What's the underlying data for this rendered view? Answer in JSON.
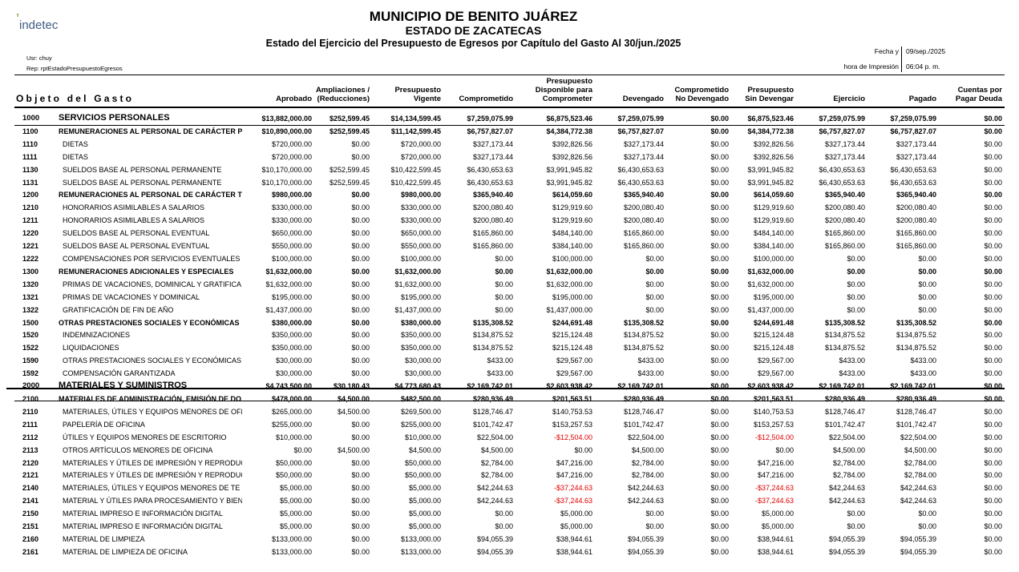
{
  "header": {
    "logo": "indetec",
    "title": "MUNICIPIO DE BENITO JUÁREZ",
    "subtitle": "ESTADO DE ZACATECAS",
    "report": "Estado del Ejercicio del Presupuesto de Egresos por Capítulo del Gasto Al 30/jun./2025",
    "user": "Usr: chuy",
    "rep": "Rep: rptEstadoPresupuestoEgresos",
    "date_label": "Fecha y",
    "date": "09/sep./2025",
    "time_label": "hora de Impresión",
    "time": "06:04 p. m."
  },
  "table": {
    "columns": [
      "Objeto del Gasto",
      "Aprobado",
      "Ampliaciones /\n(Reducciones)",
      "Presupuesto\nVigente",
      "Comprometido",
      "Presupuesto\nDisponible para\nComprometer",
      "Devengado",
      "Comprometido\nNo Devengado",
      "Presupuesto\nSin Devengar",
      "Ejercicio",
      "Pagado",
      "Cuentas por\nPagar Deuda"
    ],
    "rows": [
      [
        "1000",
        "SERVICIOS PERSONALES",
        "$13,882,000.00",
        "$252,599.45",
        "$14,134,599.45",
        "$7,259,075.99",
        "$6,875,523.46",
        "$7,259,075.99",
        "$0.00",
        "$6,875,523.46",
        "$7,259,075.99",
        "$7,259,075.99",
        "$0.00"
      ],
      [
        "1100",
        "REMUNERACIONES AL PERSONAL DE CARÁCTER PE",
        "$10,890,000.00",
        "$252,599.45",
        "$11,142,599.45",
        "$6,757,827.07",
        "$4,384,772.38",
        "$6,757,827.07",
        "$0.00",
        "$4,384,772.38",
        "$6,757,827.07",
        "$6,757,827.07",
        "$0.00"
      ],
      [
        "1110",
        "DIETAS",
        "$720,000.00",
        "$0.00",
        "$720,000.00",
        "$327,173.44",
        "$392,826.56",
        "$327,173.44",
        "$0.00",
        "$392,826.56",
        "$327,173.44",
        "$327,173.44",
        "$0.00"
      ],
      [
        "1111",
        "DIETAS",
        "$720,000.00",
        "$0.00",
        "$720,000.00",
        "$327,173.44",
        "$392,826.56",
        "$327,173.44",
        "$0.00",
        "$392,826.56",
        "$327,173.44",
        "$327,173.44",
        "$0.00"
      ],
      [
        "1130",
        "SUELDOS BASE AL PERSONAL PERMANENTE",
        "$10,170,000.00",
        "$252,599.45",
        "$10,422,599.45",
        "$6,430,653.63",
        "$3,991,945.82",
        "$6,430,653.63",
        "$0.00",
        "$3,991,945.82",
        "$6,430,653.63",
        "$6,430,653.63",
        "$0.00"
      ],
      [
        "1131",
        "SUELDOS BASE AL PERSONAL PERMANENTE",
        "$10,170,000.00",
        "$252,599.45",
        "$10,422,599.45",
        "$6,430,653.63",
        "$3,991,945.82",
        "$6,430,653.63",
        "$0.00",
        "$3,991,945.82",
        "$6,430,653.63",
        "$6,430,653.63",
        "$0.00"
      ],
      [
        "1200",
        "REMUNERACIONES AL PERSONAL DE CARÁCTER TI",
        "$980,000.00",
        "$0.00",
        "$980,000.00",
        "$365,940.40",
        "$614,059.60",
        "$365,940.40",
        "$0.00",
        "$614,059.60",
        "$365,940.40",
        "$365,940.40",
        "$0.00"
      ],
      [
        "1210",
        "HONORARIOS ASIMILABLES A SALARIOS",
        "$330,000.00",
        "$0.00",
        "$330,000.00",
        "$200,080.40",
        "$129,919.60",
        "$200,080.40",
        "$0.00",
        "$129,919.60",
        "$200,080.40",
        "$200,080.40",
        "$0.00"
      ],
      [
        "1211",
        "HONORARIOS ASIMILABLES A SALARIOS",
        "$330,000.00",
        "$0.00",
        "$330,000.00",
        "$200,080.40",
        "$129,919.60",
        "$200,080.40",
        "$0.00",
        "$129,919.60",
        "$200,080.40",
        "$200,080.40",
        "$0.00"
      ],
      [
        "1220",
        "SUELDOS BASE AL PERSONAL EVENTUAL",
        "$650,000.00",
        "$0.00",
        "$650,000.00",
        "$165,860.00",
        "$484,140.00",
        "$165,860.00",
        "$0.00",
        "$484,140.00",
        "$165,860.00",
        "$165,860.00",
        "$0.00"
      ],
      [
        "1221",
        "SUELDOS BASE AL PERSONAL EVENTUAL",
        "$550,000.00",
        "$0.00",
        "$550,000.00",
        "$165,860.00",
        "$384,140.00",
        "$165,860.00",
        "$0.00",
        "$384,140.00",
        "$165,860.00",
        "$165,860.00",
        "$0.00"
      ],
      [
        "1222",
        "COMPENSACIONES POR SERVICIOS EVENTUALES",
        "$100,000.00",
        "$0.00",
        "$100,000.00",
        "$0.00",
        "$100,000.00",
        "$0.00",
        "$0.00",
        "$100,000.00",
        "$0.00",
        "$0.00",
        "$0.00"
      ],
      [
        "1300",
        "REMUNERACIONES ADICIONALES Y ESPECIALES",
        "$1,632,000.00",
        "$0.00",
        "$1,632,000.00",
        "$0.00",
        "$1,632,000.00",
        "$0.00",
        "$0.00",
        "$1,632,000.00",
        "$0.00",
        "$0.00",
        "$0.00"
      ],
      [
        "1320",
        "PRIMAS DE VACACIONES, DOMINICAL Y GRATIFICA",
        "$1,632,000.00",
        "$0.00",
        "$1,632,000.00",
        "$0.00",
        "$1,632,000.00",
        "$0.00",
        "$0.00",
        "$1,632,000.00",
        "$0.00",
        "$0.00",
        "$0.00"
      ],
      [
        "1321",
        "PRIMAS DE VACACIONES Y DOMINICAL",
        "$195,000.00",
        "$0.00",
        "$195,000.00",
        "$0.00",
        "$195,000.00",
        "$0.00",
        "$0.00",
        "$195,000.00",
        "$0.00",
        "$0.00",
        "$0.00"
      ],
      [
        "1322",
        "GRATIFICACIÓN DE FIN DE AÑO",
        "$1,437,000.00",
        "$0.00",
        "$1,437,000.00",
        "$0.00",
        "$1,437,000.00",
        "$0.00",
        "$0.00",
        "$1,437,000.00",
        "$0.00",
        "$0.00",
        "$0.00"
      ],
      [
        "1500",
        "OTRAS PRESTACIONES SOCIALES Y ECONÓMICAS",
        "$380,000.00",
        "$0.00",
        "$380,000.00",
        "$135,308.52",
        "$244,691.48",
        "$135,308.52",
        "$0.00",
        "$244,691.48",
        "$135,308.52",
        "$135,308.52",
        "$0.00"
      ],
      [
        "1520",
        "INDEMNIZACIONES",
        "$350,000.00",
        "$0.00",
        "$350,000.00",
        "$134,875.52",
        "$215,124.48",
        "$134,875.52",
        "$0.00",
        "$215,124.48",
        "$134,875.52",
        "$134,875.52",
        "$0.00"
      ],
      [
        "1522",
        "LIQUIDACIONES",
        "$350,000.00",
        "$0.00",
        "$350,000.00",
        "$134,875.52",
        "$215,124.48",
        "$134,875.52",
        "$0.00",
        "$215,124.48",
        "$134,875.52",
        "$134,875.52",
        "$0.00"
      ],
      [
        "1590",
        "OTRAS PRESTACIONES SOCIALES Y ECONÓMICAS",
        "$30,000.00",
        "$0.00",
        "$30,000.00",
        "$433.00",
        "$29,567.00",
        "$433.00",
        "$0.00",
        "$29,567.00",
        "$433.00",
        "$433.00",
        "$0.00"
      ],
      [
        "1592",
        "COMPENSACIÓN GARANTIZADA",
        "$30,000.00",
        "$0.00",
        "$30,000.00",
        "$433.00",
        "$29,567.00",
        "$433.00",
        "$0.00",
        "$29,567.00",
        "$433.00",
        "$433.00",
        "$0.00"
      ],
      [
        "2000",
        "MATERIALES Y SUMINISTROS",
        "$4,743,500.00",
        "$30,180.43",
        "$4,773,680.43",
        "$2,169,742.01",
        "$2,603,938.42",
        "$2,169,742.01",
        "$0.00",
        "$2,603,938.42",
        "$2,169,742.01",
        "$2,169,742.01",
        "$0.00"
      ],
      [
        "2100",
        "MATERIALES DE ADMINISTRACIÓN, EMISIÓN DE DO",
        "$478,000.00",
        "$4,500.00",
        "$482,500.00",
        "$280,936.49",
        "$201,563.51",
        "$280,936.49",
        "$0.00",
        "$201,563.51",
        "$280,936.49",
        "$280,936.49",
        "$0.00"
      ],
      [
        "2110",
        "MATERIALES, ÚTILES Y EQUIPOS MENORES DE OFI",
        "$265,000.00",
        "$4,500.00",
        "$269,500.00",
        "$128,746.47",
        "$140,753.53",
        "$128,746.47",
        "$0.00",
        "$140,753.53",
        "$128,746.47",
        "$128,746.47",
        "$0.00"
      ],
      [
        "2111",
        "PAPELERÍA DE OFICINA",
        "$255,000.00",
        "$0.00",
        "$255,000.00",
        "$101,742.47",
        "$153,257.53",
        "$101,742.47",
        "$0.00",
        "$153,257.53",
        "$101,742.47",
        "$101,742.47",
        "$0.00"
      ],
      [
        "2112",
        "ÚTILES Y EQUIPOS MENORES DE ESCRITORIO",
        "$10,000.00",
        "$0.00",
        "$10,000.00",
        "$22,504.00",
        "-$12,504.00",
        "$22,504.00",
        "$0.00",
        "-$12,504.00",
        "$22,504.00",
        "$22,504.00",
        "$0.00"
      ],
      [
        "2113",
        "OTROS ARTÍCULOS MENORES DE OFICINA",
        "$0.00",
        "$4,500.00",
        "$4,500.00",
        "$4,500.00",
        "$0.00",
        "$4,500.00",
        "$0.00",
        "$0.00",
        "$4,500.00",
        "$4,500.00",
        "$0.00"
      ],
      [
        "2120",
        "MATERIALES Y ÚTILES DE IMPRESIÓN Y REPRODUC",
        "$50,000.00",
        "$0.00",
        "$50,000.00",
        "$2,784.00",
        "$47,216.00",
        "$2,784.00",
        "$0.00",
        "$47,216.00",
        "$2,784.00",
        "$2,784.00",
        "$0.00"
      ],
      [
        "2121",
        "MATERIALES Y ÚTILES DE IMPRESIÓN Y REPRODUC",
        "$50,000.00",
        "$0.00",
        "$50,000.00",
        "$2,784.00",
        "$47,216.00",
        "$2,784.00",
        "$0.00",
        "$47,216.00",
        "$2,784.00",
        "$2,784.00",
        "$0.00"
      ],
      [
        "2140",
        "MATERIALES, ÚTILES Y EQUIPOS MENORES DE TE",
        "$5,000.00",
        "$0.00",
        "$5,000.00",
        "$42,244.63",
        "-$37,244.63",
        "$42,244.63",
        "$0.00",
        "-$37,244.63",
        "$42,244.63",
        "$42,244.63",
        "$0.00"
      ],
      [
        "2141",
        "MATERIAL Y ÚTILES PARA PROCESAMIENTO Y BIEN",
        "$5,000.00",
        "$0.00",
        "$5,000.00",
        "$42,244.63",
        "-$37,244.63",
        "$42,244.63",
        "$0.00",
        "-$37,244.63",
        "$42,244.63",
        "$42,244.63",
        "$0.00"
      ],
      [
        "2150",
        "MATERIAL IMPRESO E INFORMACIÓN DIGITAL",
        "$5,000.00",
        "$0.00",
        "$5,000.00",
        "$0.00",
        "$5,000.00",
        "$0.00",
        "$0.00",
        "$5,000.00",
        "$0.00",
        "$0.00",
        "$0.00"
      ],
      [
        "2151",
        "MATERIAL IMPRESO E INFORMACIÓN DIGITAL",
        "$5,000.00",
        "$0.00",
        "$5,000.00",
        "$0.00",
        "$5,000.00",
        "$0.00",
        "$0.00",
        "$5,000.00",
        "$0.00",
        "$0.00",
        "$0.00"
      ],
      [
        "2160",
        "MATERIAL DE LIMPIEZA",
        "$133,000.00",
        "$0.00",
        "$133,000.00",
        "$94,055.39",
        "$38,944.61",
        "$94,055.39",
        "$0.00",
        "$38,944.61",
        "$94,055.39",
        "$94,055.39",
        "$0.00"
      ],
      [
        "2161",
        "MATERIAL DE LIMPIEZA DE OFICINA",
        "$133,000.00",
        "$0.00",
        "$133,000.00",
        "$94,055.39",
        "$38,944.61",
        "$94,055.39",
        "$0.00",
        "$38,944.61",
        "$94,055.39",
        "$94,055.39",
        "$0.00"
      ]
    ]
  }
}
